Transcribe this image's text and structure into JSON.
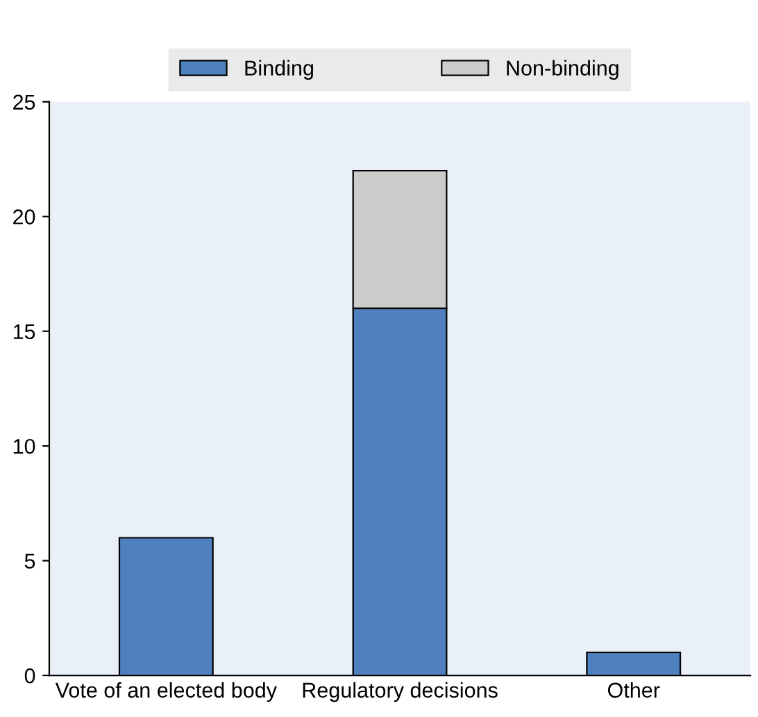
{
  "chart_data": {
    "type": "bar",
    "stacked": true,
    "categories": [
      "Vote of an elected body",
      "Regulatory decisions",
      "Other"
    ],
    "series": [
      {
        "name": "Binding",
        "color": "#4e81bd",
        "values": [
          6,
          16,
          1
        ]
      },
      {
        "name": "Non-binding",
        "color": "#cccccc",
        "values": [
          null,
          6,
          null
        ]
      }
    ],
    "ylim": [
      0,
      25
    ],
    "yticks": [
      0,
      5,
      10,
      15,
      20,
      25
    ],
    "grid": false,
    "legend": "top"
  }
}
